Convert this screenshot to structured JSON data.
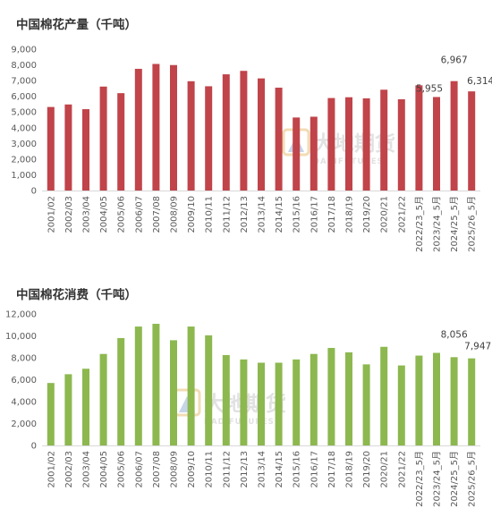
{
  "chart_data": [
    {
      "type": "bar",
      "title": "中国棉花产量（千吨）",
      "categories": [
        "2001/02",
        "2002/03",
        "2003/04",
        "2004/05",
        "2005/06",
        "2006/07",
        "2007/08",
        "2008/09",
        "2009/10",
        "2010/11",
        "2011/12",
        "2012/13",
        "2013/14",
        "2014/15",
        "2015/16",
        "2016/17",
        "2017/18",
        "2018/19",
        "2019/20",
        "2020/21",
        "2021/22",
        "2022/23_5月",
        "2023/24_5月",
        "2024/25_5月",
        "2025/26_5月"
      ],
      "values": [
        5320,
        5480,
        5180,
        6620,
        6200,
        7750,
        8060,
        7990,
        6960,
        6640,
        7400,
        7620,
        7140,
        6550,
        4650,
        4700,
        5890,
        5940,
        5870,
        6420,
        5810,
        6700,
        5955,
        6967,
        6314
      ],
      "data_labels": [
        "",
        "",
        "",
        "",
        "",
        "",
        "",
        "",
        "",
        "",
        "",
        "",
        "",
        "",
        "",
        "",
        "",
        "",
        "",
        "",
        "",
        "",
        "5,955",
        "6,967",
        "6,314"
      ],
      "y_ticks": [
        "9,000",
        "8,000",
        "7,000",
        "6,000",
        "5,000",
        "4,000",
        "3,000",
        "2,000",
        "1,000",
        "0"
      ],
      "ylim": [
        0,
        9000
      ],
      "bar_color": "#c0444a",
      "xlabel": "",
      "ylabel": "",
      "grid": false
    },
    {
      "type": "bar",
      "title": "中国棉花消费（千吨）",
      "categories": [
        "2001/02",
        "2002/03",
        "2003/04",
        "2004/05",
        "2005/06",
        "2006/07",
        "2007/08",
        "2008/09",
        "2009/10",
        "2010/11",
        "2011/12",
        "2012/13",
        "2013/14",
        "2014/15",
        "2015/16",
        "2016/17",
        "2017/18",
        "2018/19",
        "2019/20",
        "2020/21",
        "2021/22",
        "2022/23_5月",
        "2023/24_5月",
        "2024/25_5月",
        "2025/26_5月"
      ],
      "values": [
        5700,
        6500,
        7000,
        8350,
        9800,
        10850,
        11100,
        9600,
        10850,
        10050,
        8250,
        7850,
        7550,
        7550,
        7850,
        8350,
        8900,
        8500,
        7400,
        9000,
        7300,
        8200,
        8450,
        8056,
        7947
      ],
      "data_labels": [
        "",
        "",
        "",
        "",
        "",
        "",
        "",
        "",
        "",
        "",
        "",
        "",
        "",
        "",
        "",
        "",
        "",
        "",
        "",
        "",
        "",
        "",
        "",
        "8,056",
        "7,947"
      ],
      "y_ticks": [
        "12,000",
        "10,000",
        "8,000",
        "6,000",
        "4,000",
        "2,000",
        "0"
      ],
      "ylim": [
        0,
        12000
      ],
      "bar_color": "#8cb84f",
      "xlabel": "",
      "ylabel": "",
      "grid": false
    }
  ],
  "watermark": {
    "brand": "大地期货",
    "sub": "DADIFUTURES"
  }
}
